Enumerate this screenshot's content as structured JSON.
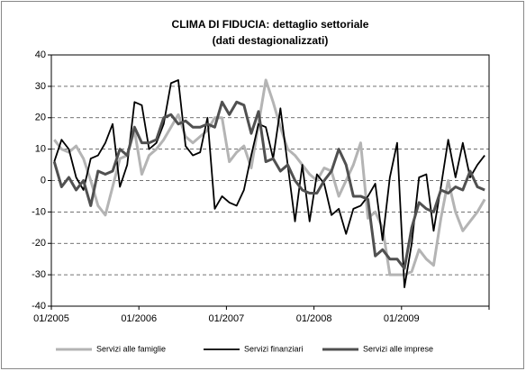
{
  "chart_data": {
    "type": "line",
    "title": "CLIMA DI FIDUCIA: dettaglio settoriale",
    "subtitle": "(dati destagionalizzati)",
    "categories": [
      "01/2005",
      null,
      null,
      null,
      null,
      null,
      null,
      null,
      null,
      null,
      null,
      null,
      "01/2006",
      null,
      null,
      null,
      null,
      null,
      null,
      null,
      null,
      null,
      null,
      null,
      "01/2007",
      null,
      null,
      null,
      null,
      null,
      null,
      null,
      null,
      null,
      null,
      null,
      "01/2008",
      null,
      null,
      null,
      null,
      null,
      null,
      null,
      null,
      null,
      null,
      null,
      "01/2009",
      null,
      null,
      null,
      null,
      null,
      null,
      null,
      null,
      null,
      null,
      null
    ],
    "series": [
      {
        "name": "Servizi alle famiglie",
        "color": "#b4b4b4",
        "values": [
          13,
          10,
          9,
          11,
          7,
          0,
          -8,
          -11,
          -2,
          7,
          8,
          16,
          2,
          8,
          10,
          13,
          17,
          21,
          14,
          12,
          14,
          16,
          20,
          20,
          6,
          9,
          11,
          4,
          18,
          32,
          25,
          17,
          10,
          8,
          5,
          2,
          0,
          4,
          3,
          -5,
          0,
          5,
          12,
          -12,
          -10,
          -15,
          -30,
          -30,
          -30,
          -29,
          -22,
          -25,
          -27,
          -12,
          0,
          -10,
          -16,
          -13,
          -10,
          -6
        ]
      },
      {
        "name": "Servizi finanziari",
        "color": "#000000",
        "values": [
          6,
          13,
          10,
          1,
          -3,
          7,
          8,
          12,
          18,
          -2,
          5,
          25,
          24,
          10,
          12,
          18,
          31,
          32,
          11,
          8,
          9,
          20,
          -9,
          -5,
          -7,
          -8,
          -3,
          8,
          18,
          17,
          7,
          23,
          5,
          -13,
          5,
          -13,
          2,
          -1,
          -11,
          -9,
          -17,
          -9,
          -8,
          -5,
          -1,
          -19,
          1,
          12,
          -34,
          -20,
          1,
          2,
          -16,
          -2,
          13,
          1,
          12,
          1,
          5,
          8
        ]
      },
      {
        "name": "Servizi alle imprese",
        "color": "#505050",
        "values": [
          6,
          -2,
          1,
          -3,
          0,
          -8,
          3,
          2,
          3,
          10,
          8,
          17,
          12,
          12,
          13,
          20,
          21,
          18,
          19,
          17,
          17,
          18,
          17,
          25,
          21,
          25,
          24,
          15,
          22,
          6,
          7,
          3,
          5,
          0,
          -3,
          -4,
          -4,
          0,
          3,
          10,
          5,
          -5,
          -5,
          -6,
          -24,
          -22,
          -25,
          -25,
          -28,
          -15,
          -7,
          -9,
          -10,
          -3,
          -4,
          -2,
          -3,
          3,
          -2,
          -3
        ]
      }
    ],
    "ylim": [
      -40,
      40
    ],
    "yticks": [
      -40,
      -30,
      -20,
      -10,
      0,
      10,
      20,
      30,
      40
    ],
    "grid": true
  }
}
